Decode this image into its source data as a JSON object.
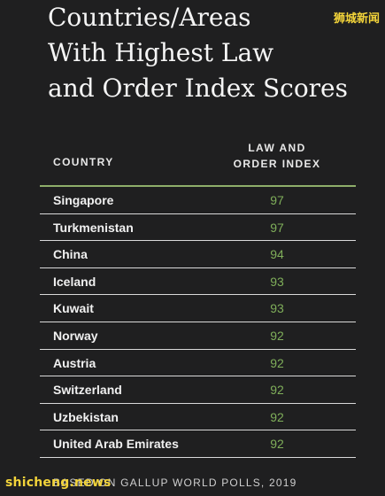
{
  "title": "Countries/Areas\nWith Highest Law\nand Order Index Scores",
  "watermark_top": "狮城新闻",
  "watermark_bottom": "shicheng.news",
  "source": "BASED ON GALLUP WORLD POLLS, 2019",
  "colors": {
    "background": "#1f1f20",
    "score_text": "#7fae5a",
    "header_rule": "#8fae6a",
    "watermark": "#f2d33a"
  },
  "chart_data": {
    "type": "table",
    "title": "Countries/Areas With Highest Law and Order Index Scores",
    "columns": [
      "COUNTRY",
      "LAW AND\nORDER INDEX"
    ],
    "rows": [
      {
        "country": "Singapore",
        "score": 97
      },
      {
        "country": "Turkmenistan",
        "score": 97
      },
      {
        "country": "China",
        "score": 94
      },
      {
        "country": "Iceland",
        "score": 93
      },
      {
        "country": "Kuwait",
        "score": 93
      },
      {
        "country": "Norway",
        "score": 92
      },
      {
        "country": "Austria",
        "score": 92
      },
      {
        "country": "Switzerland",
        "score": 92
      },
      {
        "country": "Uzbekistan",
        "score": 92
      },
      {
        "country": "United Arab Emirates",
        "score": 92
      }
    ]
  }
}
